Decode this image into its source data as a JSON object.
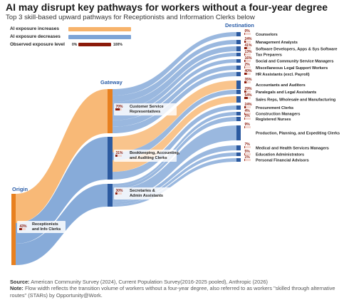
{
  "title": "AI may disrupt key pathways for workers without a four-year degree",
  "subtitle": "Top 3 skill-based upward pathways for Receptionists and Information Clerks below",
  "legend": {
    "increase_label": "AI exposure increases",
    "decrease_label": "AI exposure decreases",
    "observed_label": "Observed exposure level",
    "scale_min": "0%",
    "scale_max": "100%",
    "colors": {
      "increase": "#f7b36b",
      "decrease": "#7da4d6",
      "observed": "#8b1a0a"
    }
  },
  "columns": {
    "origin": "Origin",
    "gateway": "Gateway",
    "destination": "Destination"
  },
  "chart_data": {
    "type": "sankey",
    "origin": {
      "label": "Receptionists and Info Clerks",
      "exposure": "43%"
    },
    "gateways": [
      {
        "label": "Customer Service Representatives",
        "exposure": "70%"
      },
      {
        "label": "Bookkeeping, Accounting, and Auditing Clerks",
        "exposure": "31%"
      },
      {
        "label": "Secretaries & Admin Assistants",
        "exposure": "30%"
      }
    ],
    "destinations": [
      {
        "label": "Counselors",
        "exposure": "0%"
      },
      {
        "label": "Management Analysts",
        "exposure": "24%"
      },
      {
        "label": "Software Developers, Apps & Sys Software",
        "exposure": "41%"
      },
      {
        "label": "Tax Preparers",
        "exposure": "13%"
      },
      {
        "label": "Social and Community Service Managers",
        "exposure": "16%"
      },
      {
        "label": "Miscellaneous Legal Support Workers",
        "exposure": "2%"
      },
      {
        "label": "HR Assistants (excl. Payroll)",
        "exposure": "40%"
      },
      {
        "label": "Accountants and Auditors",
        "exposure": "35%"
      },
      {
        "label": "Paralegals and Legal Assistants",
        "exposure": "29%"
      },
      {
        "label": "Sales Reps, Wholesale and Manufacturing",
        "exposure": "54%"
      },
      {
        "label": "Procurement Clerks",
        "exposure": "24%"
      },
      {
        "label": "Construction Managers",
        "exposure": "4%"
      },
      {
        "label": "Registered Nurses",
        "exposure": "5%"
      },
      {
        "label": "Production, Planning, and Expediting Clerks",
        "exposure": "9%"
      },
      {
        "label": "Medical and Health Services Managers",
        "exposure": "7%"
      },
      {
        "label": "Education Administrators",
        "exposure": "5%"
      },
      {
        "label": "Personal Financial Advisors",
        "exposure": "1%"
      }
    ]
  },
  "footer": {
    "source_label": "Source:",
    "source_text": "American Community Survey (2024), Current Population Survey(2016-2025 pooled), Anthropic (2026)",
    "note_label": "Note:",
    "note_text": "Flow width reflects the transition volume of workers without a four-year degree, also referred to as workers \"skilled through alternative routes\" (STARs) by Opportunity@Work."
  }
}
